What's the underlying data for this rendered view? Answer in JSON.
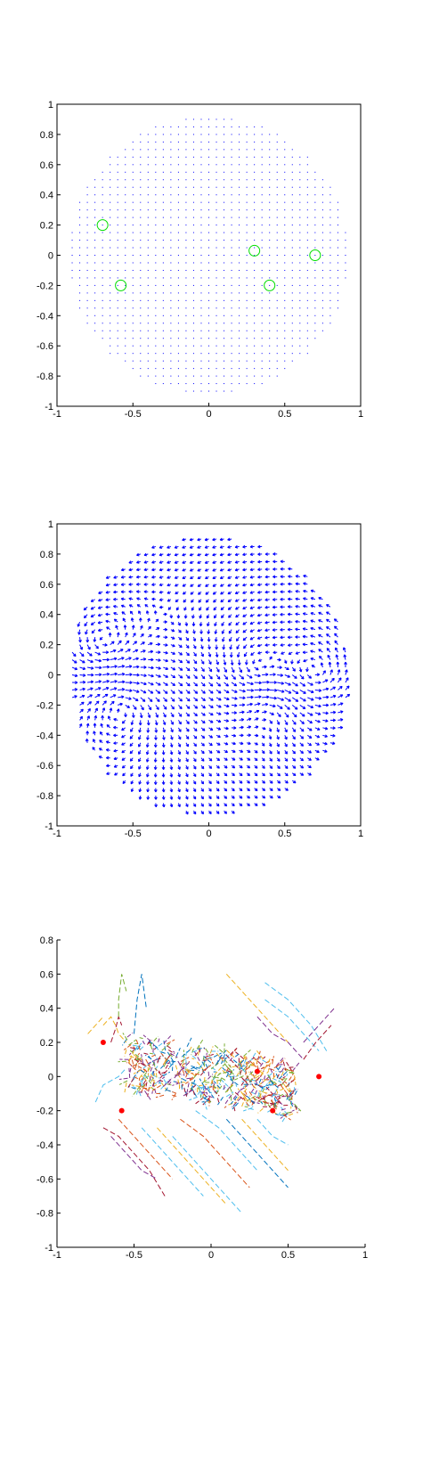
{
  "colors": {
    "field_grid": "#0000ff",
    "circles": "#00dd00",
    "quiver": "#0000ff",
    "sources": "#ff0000",
    "background": "#ffffff",
    "trajectory_palette": [
      "#0072bd",
      "#d95319",
      "#edb120",
      "#7e2f8e",
      "#77ac30",
      "#4dbeee",
      "#a2142f"
    ]
  },
  "chart_data": [
    {
      "type": "scatter",
      "title": "",
      "xlabel": "",
      "ylabel": "",
      "xlim": [
        -1,
        1
      ],
      "ylim": [
        -1,
        1
      ],
      "xticks": [
        "-1",
        "-0.5",
        "0",
        "0.5",
        "1"
      ],
      "yticks": [
        "1",
        "0.8",
        "0.6",
        "0.4",
        "0.2",
        "0",
        "-0.2",
        "-0.4",
        "-0.6",
        "-0.8",
        "-1"
      ],
      "grid_points": {
        "spacing": 0.05,
        "region": "disk",
        "radius": 0.92,
        "color": "#0000ff"
      },
      "circles": {
        "x": [
          -0.7,
          -0.58,
          0.3,
          0.4,
          0.7
        ],
        "y": [
          0.2,
          -0.2,
          0.03,
          -0.2,
          0.0
        ],
        "color": "#00dd00"
      }
    },
    {
      "type": "quiver",
      "title": "",
      "xlabel": "",
      "ylabel": "",
      "xlim": [
        -1,
        1
      ],
      "ylim": [
        -1,
        1
      ],
      "xticks": [
        "-1",
        "-0.5",
        "0",
        "0.5",
        "1"
      ],
      "yticks": [
        "1",
        "0.8",
        "0.6",
        "0.4",
        "0.2",
        "0",
        "-0.2",
        "-0.4",
        "-0.6",
        "-0.8",
        "-1"
      ],
      "field": {
        "spacing": 0.05,
        "region": "disk",
        "radius": 0.92,
        "color": "#0000ff"
      },
      "vortex_centers": {
        "x": [
          -0.7,
          -0.58,
          0.3,
          0.4,
          0.7
        ],
        "y": [
          0.2,
          -0.2,
          0.03,
          -0.2,
          0.0
        ]
      }
    },
    {
      "type": "line",
      "title": "",
      "xlabel": "",
      "ylabel": "",
      "xlim": [
        -1,
        1
      ],
      "ylim": [
        -1,
        0.8
      ],
      "xticks": [
        "-1",
        "-0.5",
        "0",
        "0.5",
        "1"
      ],
      "yticks": [
        "0.8",
        "0.6",
        "0.4",
        "0.2",
        "0",
        "-0.2",
        "-0.4",
        "-0.6",
        "-0.8",
        "-1"
      ],
      "sources": {
        "x": [
          -0.7,
          -0.58,
          0.3,
          0.4,
          0.7
        ],
        "y": [
          0.2,
          -0.2,
          0.03,
          -0.2,
          0.0
        ],
        "color": "#ff0000"
      },
      "dense_cluster": {
        "x_range": [
          -0.55,
          0.55
        ],
        "y_center": 0.0,
        "tilt": -0.15
      },
      "trajectories": [
        {
          "x": [
            -0.7,
            -0.65,
            -0.62,
            -0.6,
            -0.55
          ],
          "y": [
            0.3,
            0.35,
            0.3,
            0.25,
            0.2
          ],
          "color": "#edb120"
        },
        {
          "x": [
            -0.65,
            -0.62,
            -0.6,
            -0.58
          ],
          "y": [
            0.2,
            0.28,
            0.35,
            0.3
          ],
          "color": "#a2142f"
        },
        {
          "x": [
            -0.6,
            -0.6,
            -0.58,
            -0.55
          ],
          "y": [
            0.35,
            0.45,
            0.6,
            0.5
          ],
          "color": "#77ac30"
        },
        {
          "x": [
            -0.5,
            -0.48,
            -0.45,
            -0.42
          ],
          "y": [
            0.25,
            0.45,
            0.6,
            0.4
          ],
          "color": "#0072bd"
        },
        {
          "x": [
            0.1,
            0.2,
            0.3,
            0.4,
            0.5
          ],
          "y": [
            0.6,
            0.5,
            0.4,
            0.3,
            0.2
          ],
          "color": "#edb120"
        },
        {
          "x": [
            0.35,
            0.5,
            0.65,
            0.75
          ],
          "y": [
            0.55,
            0.45,
            0.3,
            0.15
          ],
          "color": "#4dbeee"
        },
        {
          "x": [
            0.35,
            0.5,
            0.6,
            0.7
          ],
          "y": [
            0.45,
            0.35,
            0.25,
            0.15
          ],
          "color": "#4dbeee"
        },
        {
          "x": [
            0.3,
            0.4,
            0.5,
            0.6
          ],
          "y": [
            0.35,
            0.25,
            0.2,
            0.1
          ],
          "color": "#7e2f8e"
        },
        {
          "x": [
            0.6,
            0.7,
            0.8
          ],
          "y": [
            0.2,
            0.3,
            0.4
          ],
          "color": "#7e2f8e"
        },
        {
          "x": [
            0.6,
            0.68,
            0.78
          ],
          "y": [
            0.1,
            0.2,
            0.3
          ],
          "color": "#a2142f"
        },
        {
          "x": [
            -0.75,
            -0.7,
            -0.6,
            -0.55
          ],
          "y": [
            -0.15,
            -0.05,
            0.0,
            0.05
          ],
          "color": "#4dbeee"
        },
        {
          "x": [
            -0.7,
            -0.6,
            -0.5,
            -0.4,
            -0.3
          ],
          "y": [
            -0.3,
            -0.35,
            -0.45,
            -0.55,
            -0.7
          ],
          "color": "#a2142f"
        },
        {
          "x": [
            -0.65,
            -0.55,
            -0.45,
            -0.35
          ],
          "y": [
            -0.35,
            -0.45,
            -0.55,
            -0.6
          ],
          "color": "#7e2f8e"
        },
        {
          "x": [
            -0.6,
            -0.5,
            -0.4,
            -0.25
          ],
          "y": [
            -0.25,
            -0.35,
            -0.45,
            -0.6
          ],
          "color": "#d95319"
        },
        {
          "x": [
            -0.45,
            -0.35,
            -0.2,
            -0.05
          ],
          "y": [
            -0.3,
            -0.4,
            -0.55,
            -0.7
          ],
          "color": "#4dbeee"
        },
        {
          "x": [
            -0.35,
            -0.2,
            -0.05,
            0.1
          ],
          "y": [
            -0.3,
            -0.45,
            -0.6,
            -0.75
          ],
          "color": "#edb120"
        },
        {
          "x": [
            -0.25,
            -0.1,
            0.05,
            0.2
          ],
          "y": [
            -0.35,
            -0.5,
            -0.65,
            -0.8
          ],
          "color": "#4dbeee"
        },
        {
          "x": [
            -0.2,
            -0.05,
            0.1,
            0.25
          ],
          "y": [
            -0.25,
            -0.35,
            -0.5,
            -0.65
          ],
          "color": "#d95319"
        },
        {
          "x": [
            -0.1,
            0.05,
            0.2,
            0.3
          ],
          "y": [
            -0.2,
            -0.3,
            -0.45,
            -0.55
          ],
          "color": "#4dbeee"
        },
        {
          "x": [
            0.1,
            0.2,
            0.3,
            0.4,
            0.5
          ],
          "y": [
            -0.25,
            -0.35,
            -0.45,
            -0.55,
            -0.65
          ],
          "color": "#0072bd"
        },
        {
          "x": [
            0.2,
            0.3,
            0.4,
            0.5
          ],
          "y": [
            -0.25,
            -0.35,
            -0.45,
            -0.55
          ],
          "color": "#edb120"
        },
        {
          "x": [
            0.3,
            0.4,
            0.5
          ],
          "y": [
            -0.25,
            -0.35,
            -0.4
          ],
          "color": "#4dbeee"
        },
        {
          "x": [
            -0.8,
            -0.75,
            -0.7
          ],
          "y": [
            0.25,
            0.3,
            0.35
          ],
          "color": "#edb120"
        }
      ]
    }
  ]
}
